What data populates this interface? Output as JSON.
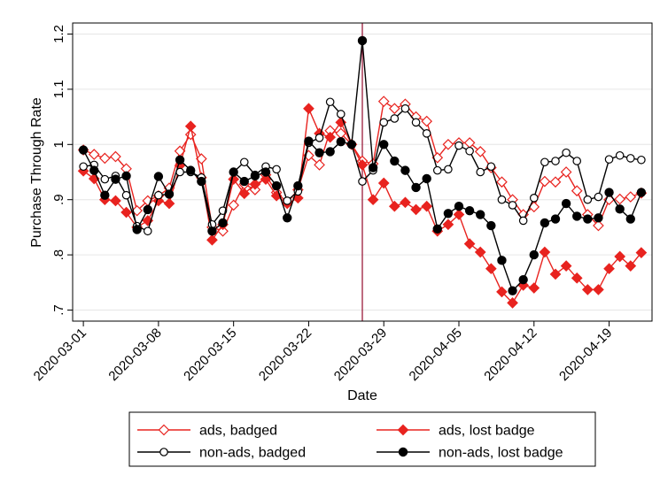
{
  "chart_data": {
    "type": "line",
    "xlabel": "Date",
    "ylabel": "Purchase Through Rate",
    "ylim": [
      0.68,
      1.22
    ],
    "y_ticks": [
      0.7,
      0.8,
      0.9,
      1.0,
      1.1,
      1.2
    ],
    "y_tick_labels": [
      ".7",
      ".8",
      ".9",
      "1",
      "1.1",
      "1.2"
    ],
    "x_ticks": [
      "2020-03-01",
      "2020-03-08",
      "2020-03-15",
      "2020-03-22",
      "2020-03-29",
      "2020-04-05",
      "2020-04-12",
      "2020-04-19"
    ],
    "x_range": [
      "2020-02-29",
      "2020-04-23"
    ],
    "vertical_line_x": "2020-03-27",
    "vertical_line_color": "#9b1c3c",
    "grid": "horizontal",
    "legend_position": "bottom",
    "x": [
      "2020-03-01",
      "2020-03-02",
      "2020-03-03",
      "2020-03-04",
      "2020-03-05",
      "2020-03-06",
      "2020-03-07",
      "2020-03-08",
      "2020-03-09",
      "2020-03-10",
      "2020-03-11",
      "2020-03-12",
      "2020-03-13",
      "2020-03-14",
      "2020-03-15",
      "2020-03-16",
      "2020-03-17",
      "2020-03-18",
      "2020-03-19",
      "2020-03-20",
      "2020-03-21",
      "2020-03-22",
      "2020-03-23",
      "2020-03-24",
      "2020-03-25",
      "2020-03-26",
      "2020-03-27",
      "2020-03-28",
      "2020-03-29",
      "2020-03-30",
      "2020-03-31",
      "2020-04-01",
      "2020-04-02",
      "2020-04-03",
      "2020-04-04",
      "2020-04-05",
      "2020-04-06",
      "2020-04-07",
      "2020-04-08",
      "2020-04-09",
      "2020-04-10",
      "2020-04-11",
      "2020-04-12",
      "2020-04-13",
      "2020-04-14",
      "2020-04-15",
      "2020-04-16",
      "2020-04-17",
      "2020-04-18",
      "2020-04-19",
      "2020-04-20",
      "2020-04-21",
      "2020-04-22"
    ],
    "series": [
      {
        "name": "ads, badged",
        "color": "#e8231f",
        "marker": "diamond-open",
        "values": [
          0.99,
          0.982,
          0.975,
          0.978,
          0.956,
          0.88,
          0.898,
          0.907,
          0.921,
          0.988,
          1.018,
          0.974,
          0.85,
          0.843,
          0.89,
          0.928,
          0.918,
          0.945,
          0.913,
          0.895,
          0.918,
          0.98,
          0.963,
          1.025,
          1.02,
          1.0,
          0.97,
          0.965,
          1.078,
          1.065,
          1.073,
          1.05,
          1.042,
          0.976,
          1.0,
          1.003,
          1.003,
          0.987,
          0.958,
          0.932,
          0.9,
          0.873,
          0.887,
          0.933,
          0.932,
          0.95,
          0.916,
          0.873,
          0.853,
          0.9,
          0.901,
          0.905,
          0.912
        ]
      },
      {
        "name": "ads, lost badge",
        "color": "#e8231f",
        "marker": "diamond-filled",
        "values": [
          0.952,
          0.938,
          0.9,
          0.898,
          0.877,
          0.85,
          0.862,
          0.898,
          0.893,
          0.962,
          1.033,
          0.94,
          0.827,
          0.855,
          0.937,
          0.911,
          0.928,
          0.937,
          0.907,
          0.893,
          0.903,
          1.065,
          1.02,
          1.013,
          1.04,
          1.0,
          0.963,
          0.9,
          0.93,
          0.888,
          0.895,
          0.882,
          0.888,
          0.843,
          0.855,
          0.873,
          0.82,
          0.805,
          0.775,
          0.733,
          0.713,
          0.745,
          0.74,
          0.805,
          0.765,
          0.78,
          0.758,
          0.737,
          0.737,
          0.775,
          0.797,
          0.78,
          0.804
        ]
      },
      {
        "name": "non-ads, badged",
        "color": "#000000",
        "marker": "circle-open",
        "values": [
          0.96,
          0.963,
          0.937,
          0.943,
          0.908,
          0.852,
          0.843,
          0.908,
          0.91,
          0.95,
          0.95,
          0.94,
          0.855,
          0.88,
          0.95,
          0.968,
          0.945,
          0.96,
          0.955,
          0.898,
          0.915,
          1.003,
          1.012,
          1.077,
          1.055,
          1.0,
          0.933,
          0.953,
          1.04,
          1.047,
          1.065,
          1.04,
          1.02,
          0.953,
          0.955,
          0.998,
          0.988,
          0.95,
          0.96,
          0.9,
          0.89,
          0.862,
          0.903,
          0.968,
          0.97,
          0.985,
          0.97,
          0.9,
          0.905,
          0.973,
          0.98,
          0.975,
          0.972
        ]
      },
      {
        "name": "non-ads, lost badge",
        "color": "#000000",
        "marker": "circle-filled",
        "values": [
          0.99,
          0.953,
          0.908,
          0.937,
          0.943,
          0.846,
          0.882,
          0.942,
          0.91,
          0.972,
          0.953,
          0.933,
          0.843,
          0.858,
          0.95,
          0.933,
          0.943,
          0.95,
          0.925,
          0.867,
          0.925,
          1.006,
          0.985,
          0.987,
          1.005,
          1.0,
          1.188,
          0.958,
          1.0,
          0.97,
          0.953,
          0.922,
          0.938,
          0.847,
          0.875,
          0.888,
          0.88,
          0.873,
          0.853,
          0.79,
          0.735,
          0.755,
          0.8,
          0.858,
          0.865,
          0.893,
          0.87,
          0.865,
          0.867,
          0.913,
          0.883,
          0.865,
          0.913
        ]
      }
    ]
  }
}
